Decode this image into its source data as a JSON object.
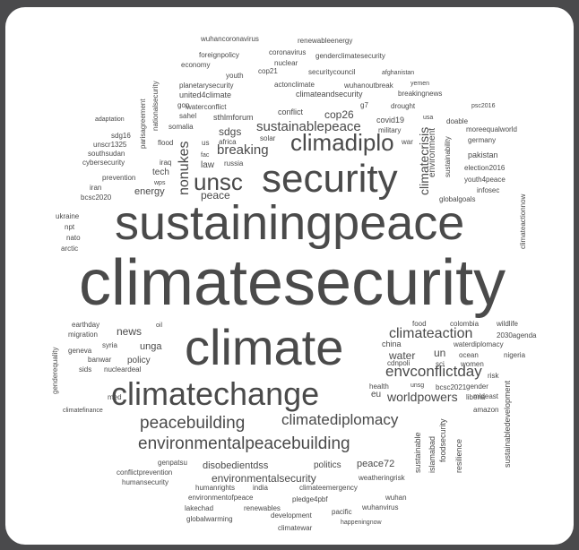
{
  "text_color": "#4a4a4a",
  "background": "#4a4a4c",
  "panel_color": "#ffffff",
  "words": {
    "climatesecurity": "climatesecurity",
    "sustainingpeace": "sustainingpeace",
    "climate": "climate",
    "security": "security",
    "climatechange": "climatechange",
    "unsc": "unsc",
    "climadiplo": "climadiplo",
    "environmentalpeacebuilding": "environmentalpeacebuilding",
    "peacebuilding": "peacebuilding",
    "climatediplomacy": "climatediplomacy",
    "nonukes": "nonukes",
    "envconflictday": "envconflictday",
    "climateaction": "climateaction",
    "sustainablepeace": "sustainablepeace",
    "breaking": "breaking",
    "worldpowers": "worldpowers",
    "climatecrisis": "climatecrisis",
    "sdgs": "sdgs",
    "peace": "peace",
    "energy": "energy",
    "news": "news",
    "cop26": "cop26",
    "water": "water",
    "un": "un",
    "unga": "unga",
    "policy": "policy",
    "environmentalsecurity": "environmentalsecurity",
    "disobedientdss": "disobedientdss",
    "peace72": "peace72",
    "politics": "politics",
    "wuhancoronavirus": "wuhancoronavirus",
    "renewableenergy": "renewableenergy",
    "foreignpolicy": "foreignpolicy",
    "coronavirus": "coronavirus",
    "genderclimatesecurity": "genderclimatesecurity",
    "economy": "economy",
    "nuclear": "nuclear",
    "youth": "youth",
    "cop21": "cop21",
    "securitycouncil": "securitycouncil",
    "afghanistan": "afghanistan",
    "planetarysecurity": "planetarysecurity",
    "actonclimate": "actonclimate",
    "wuhanoutbreak": "wuhanoutbreak",
    "yemen": "yemen",
    "breakingnews": "breakingnews",
    "waterconflict": "waterconflict",
    "united4climate": "united4climate",
    "climateandsecurity": "climateandsecurity",
    "gop": "gop",
    "g7": "g7",
    "drought": "drought",
    "psc2016": "psc2016",
    "sahel": "sahel",
    "somalia": "somalia",
    "sthlmforum": "sthlmforum",
    "conflict": "conflict",
    "usa": "usa",
    "adaptation": "adaptation",
    "covid19": "covid19",
    "military": "military",
    "doable": "doable",
    "moreequalworld": "moreequalworld",
    "germany": "germany",
    "sdg16": "sdg16",
    "unscr1325": "unscr1325",
    "southsudan": "southsudan",
    "cybersecurity": "cybersecurity",
    "flood": "flood",
    "iraq": "iraq",
    "fac": "fac",
    "us": "us",
    "africa": "africa",
    "solar": "solar",
    "war": "war",
    "pakistan": "pakistan",
    "russia": "russia",
    "tech": "tech",
    "wps": "wps",
    "prevention": "prevention",
    "iran": "iran",
    "law": "law",
    "election2016": "election2016",
    "youth4peace": "youth4peace",
    "bcsc2020": "bcsc2020",
    "infosec": "infosec",
    "globalgoals": "globalgoals",
    "ukraine": "ukraine",
    "npt": "npt",
    "nato": "nato",
    "arctic": "arctic",
    "earthday": "earthday",
    "oil": "oil",
    "migration": "migration",
    "food": "food",
    "colombia": "colombia",
    "wildlife": "wildlife",
    "2030agenda": "2030agenda",
    "china": "china",
    "waterdiplomacy": "waterdiplomacy",
    "geneva": "geneva",
    "syria": "syria",
    "ocean": "ocean",
    "nigeria": "nigeria",
    "banwar": "banwar",
    "cdnpoli": "cdnpoli",
    "sci": "sci",
    "women": "women",
    "sids": "sids",
    "nucleardeal": "nucleardeal",
    "eu": "eu",
    "risk": "risk",
    "health": "health",
    "unsg": "unsg",
    "bcsc2021": "bcsc2021",
    "mideast": "mideast",
    "med": "med",
    "gender": "gender",
    "liberia": "liberia",
    "climatefinance": "climatefinance",
    "amazon": "amazon",
    "genpatsu": "genpatsu",
    "conflictprevention": "conflictprevention",
    "humansecurity": "humansecurity",
    "humanrights": "humanrights",
    "india": "india",
    "climateemergency": "climateemergency",
    "weatheringrisk": "weatheringrisk",
    "environmentofpeace": "environmentofpeace",
    "pledge4pbf": "pledge4pbf",
    "wuhan": "wuhan",
    "lakechad": "lakechad",
    "renewables": "renewables",
    "wuhanvirus": "wuhanvirus",
    "globalwarming": "globalwarming",
    "development": "development",
    "pacific": "pacific",
    "happeningnow": "happeningnow",
    "climatewar": "climatewar",
    "parisagreement": "parisagreement",
    "nationalsecurity": "nationalsecurity",
    "sustainability": "sustainability",
    "environment": "environment",
    "climateactionnow": "climateactionnow",
    "genderequality": "genderequality",
    "sustainable": "sustainable",
    "islamabad": "islamabad",
    "foodsecurity": "foodsecurity",
    "resilience": "resilience",
    "sustainabledevelopment": "sustainabledevelopment"
  }
}
